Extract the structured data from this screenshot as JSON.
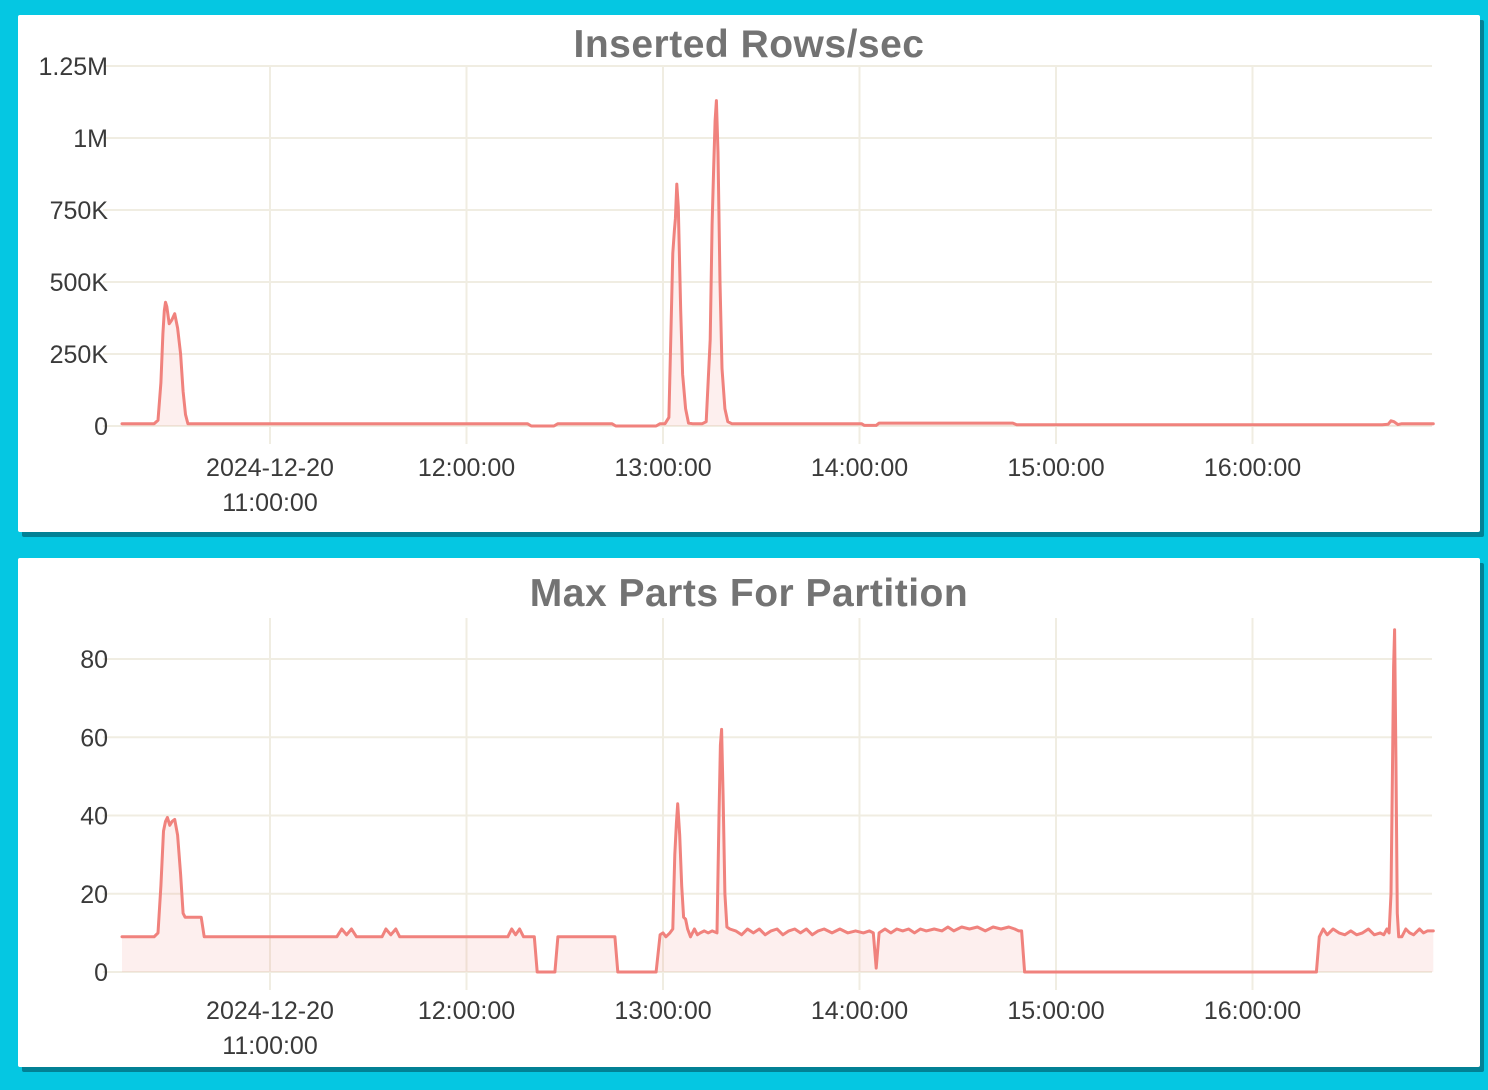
{
  "style": {
    "canvas_color": "#05C7E2",
    "panel_color": "#FFFFFF",
    "line_color": "#F0827D",
    "fill_color": "rgba(242,130,126,0.13)",
    "grid_color": "#F0EDE2",
    "title_color": "#737373",
    "tick_color": "#3A3A3A"
  },
  "chart_data": [
    {
      "type": "area",
      "title": "Inserted Rows/sec",
      "xlabel": "",
      "ylabel": "",
      "legend": "none",
      "grid": true,
      "x_range_hours": [
        10.247,
        16.92
      ],
      "y_range": [
        0,
        1250000
      ],
      "x_ticks": [
        {
          "t": 11,
          "lines": [
            "2024-12-20",
            "11:00:00"
          ]
        },
        {
          "t": 12,
          "lines": [
            "12:00:00"
          ]
        },
        {
          "t": 13,
          "lines": [
            "13:00:00"
          ]
        },
        {
          "t": 14,
          "lines": [
            "14:00:00"
          ]
        },
        {
          "t": 15,
          "lines": [
            "15:00:00"
          ]
        },
        {
          "t": 16,
          "lines": [
            "16:00:00"
          ]
        }
      ],
      "y_ticks": [
        {
          "v": 0,
          "label": "0"
        },
        {
          "v": 250000,
          "label": "250K"
        },
        {
          "v": 500000,
          "label": "500K"
        },
        {
          "v": 750000,
          "label": "750K"
        },
        {
          "v": 1000000,
          "label": "1M"
        },
        {
          "v": 1250000,
          "label": "1.25M"
        }
      ],
      "points": [
        [
          10.247,
          8000
        ],
        [
          10.41,
          8000
        ],
        [
          10.43,
          20000
        ],
        [
          10.445,
          150000
        ],
        [
          10.455,
          320000
        ],
        [
          10.462,
          400000
        ],
        [
          10.468,
          430000
        ],
        [
          10.475,
          415000
        ],
        [
          10.487,
          355000
        ],
        [
          10.5,
          368000
        ],
        [
          10.515,
          390000
        ],
        [
          10.53,
          340000
        ],
        [
          10.545,
          250000
        ],
        [
          10.558,
          120000
        ],
        [
          10.57,
          40000
        ],
        [
          10.582,
          8000
        ],
        [
          12.31,
          8000
        ],
        [
          12.33,
          0
        ],
        [
          12.445,
          0
        ],
        [
          12.465,
          8000
        ],
        [
          12.74,
          8000
        ],
        [
          12.76,
          0
        ],
        [
          12.965,
          0
        ],
        [
          12.985,
          8000
        ],
        [
          13.01,
          8000
        ],
        [
          13.03,
          30000
        ],
        [
          13.05,
          600000
        ],
        [
          13.058,
          680000
        ],
        [
          13.063,
          720000
        ],
        [
          13.07,
          840000
        ],
        [
          13.078,
          760000
        ],
        [
          13.09,
          400000
        ],
        [
          13.1,
          180000
        ],
        [
          13.115,
          60000
        ],
        [
          13.13,
          10000
        ],
        [
          13.15,
          8000
        ],
        [
          13.2,
          8000
        ],
        [
          13.22,
          15000
        ],
        [
          13.24,
          300000
        ],
        [
          13.25,
          700000
        ],
        [
          13.258,
          900000
        ],
        [
          13.265,
          1060000
        ],
        [
          13.272,
          1130000
        ],
        [
          13.28,
          950000
        ],
        [
          13.29,
          500000
        ],
        [
          13.3,
          200000
        ],
        [
          13.315,
          60000
        ],
        [
          13.33,
          15000
        ],
        [
          13.35,
          8000
        ],
        [
          14.01,
          8000
        ],
        [
          14.025,
          2000
        ],
        [
          14.085,
          2000
        ],
        [
          14.1,
          10000
        ],
        [
          14.78,
          10000
        ],
        [
          14.8,
          4000
        ],
        [
          16.66,
          4000
        ],
        [
          16.69,
          6000
        ],
        [
          16.705,
          18000
        ],
        [
          16.72,
          15000
        ],
        [
          16.74,
          5000
        ],
        [
          16.76,
          8000
        ],
        [
          16.92,
          8000
        ]
      ]
    },
    {
      "type": "area",
      "title": "Max Parts For Partition",
      "xlabel": "",
      "ylabel": "",
      "legend": "none",
      "grid": true,
      "x_range_hours": [
        10.247,
        16.92
      ],
      "y_range": [
        0,
        80
      ],
      "x_ticks": [
        {
          "t": 11,
          "lines": [
            "2024-12-20",
            "11:00:00"
          ]
        },
        {
          "t": 12,
          "lines": [
            "12:00:00"
          ]
        },
        {
          "t": 13,
          "lines": [
            "13:00:00"
          ]
        },
        {
          "t": 14,
          "lines": [
            "14:00:00"
          ]
        },
        {
          "t": 15,
          "lines": [
            "15:00:00"
          ]
        },
        {
          "t": 16,
          "lines": [
            "16:00:00"
          ]
        }
      ],
      "y_ticks": [
        {
          "v": 0,
          "label": "0"
        },
        {
          "v": 20,
          "label": "20"
        },
        {
          "v": 40,
          "label": "40"
        },
        {
          "v": 60,
          "label": "60"
        },
        {
          "v": 80,
          "label": "80"
        }
      ],
      "points": [
        [
          10.247,
          9
        ],
        [
          10.41,
          9
        ],
        [
          10.43,
          10
        ],
        [
          10.445,
          22
        ],
        [
          10.458,
          36
        ],
        [
          10.468,
          38.5
        ],
        [
          10.478,
          39.5
        ],
        [
          10.49,
          37.5
        ],
        [
          10.502,
          38.5
        ],
        [
          10.515,
          39
        ],
        [
          10.53,
          35
        ],
        [
          10.545,
          25
        ],
        [
          10.558,
          15
        ],
        [
          10.568,
          14
        ],
        [
          10.65,
          14
        ],
        [
          10.665,
          9
        ],
        [
          11.34,
          9
        ],
        [
          11.365,
          11
        ],
        [
          11.39,
          9.5
        ],
        [
          11.415,
          11
        ],
        [
          11.44,
          9
        ],
        [
          11.57,
          9
        ],
        [
          11.59,
          11
        ],
        [
          11.615,
          9.5
        ],
        [
          11.64,
          11
        ],
        [
          11.66,
          9
        ],
        [
          12.21,
          9
        ],
        [
          12.23,
          11
        ],
        [
          12.25,
          9.5
        ],
        [
          12.27,
          11
        ],
        [
          12.29,
          9
        ],
        [
          12.345,
          9
        ],
        [
          12.36,
          0
        ],
        [
          12.45,
          0
        ],
        [
          12.465,
          9
        ],
        [
          12.755,
          9
        ],
        [
          12.77,
          0
        ],
        [
          12.965,
          0
        ],
        [
          12.985,
          9.5
        ],
        [
          13.0,
          10
        ],
        [
          13.015,
          9
        ],
        [
          13.035,
          10
        ],
        [
          13.05,
          11
        ],
        [
          13.06,
          30
        ],
        [
          13.068,
          38
        ],
        [
          13.075,
          43
        ],
        [
          13.085,
          35
        ],
        [
          13.095,
          22
        ],
        [
          13.105,
          14
        ],
        [
          13.115,
          13.5
        ],
        [
          13.125,
          11
        ],
        [
          13.14,
          9
        ],
        [
          13.16,
          11
        ],
        [
          13.175,
          9.5
        ],
        [
          13.19,
          10
        ],
        [
          13.21,
          10.5
        ],
        [
          13.23,
          10
        ],
        [
          13.25,
          10.5
        ],
        [
          13.275,
          10
        ],
        [
          13.285,
          40
        ],
        [
          13.292,
          58
        ],
        [
          13.298,
          62
        ],
        [
          13.306,
          45
        ],
        [
          13.315,
          20
        ],
        [
          13.325,
          11.5
        ],
        [
          13.34,
          11
        ],
        [
          13.37,
          10.5
        ],
        [
          13.4,
          9.5
        ],
        [
          13.43,
          11
        ],
        [
          13.46,
          10
        ],
        [
          13.49,
          11
        ],
        [
          13.52,
          9.5
        ],
        [
          13.55,
          10.5
        ],
        [
          13.58,
          11
        ],
        [
          13.61,
          9.5
        ],
        [
          13.64,
          10.5
        ],
        [
          13.67,
          11
        ],
        [
          13.7,
          10
        ],
        [
          13.73,
          11
        ],
        [
          13.76,
          9.5
        ],
        [
          13.79,
          10.5
        ],
        [
          13.82,
          11
        ],
        [
          13.86,
          10
        ],
        [
          13.9,
          11
        ],
        [
          13.94,
          10
        ],
        [
          13.98,
          10.5
        ],
        [
          14.02,
          10
        ],
        [
          14.05,
          10.5
        ],
        [
          14.07,
          10
        ],
        [
          14.085,
          1
        ],
        [
          14.1,
          10
        ],
        [
          14.13,
          11
        ],
        [
          14.16,
          10
        ],
        [
          14.19,
          11
        ],
        [
          14.22,
          10.5
        ],
        [
          14.25,
          11
        ],
        [
          14.28,
          10
        ],
        [
          14.31,
          11
        ],
        [
          14.34,
          10.5
        ],
        [
          14.38,
          11
        ],
        [
          14.42,
          10.5
        ],
        [
          14.45,
          11.5
        ],
        [
          14.48,
          10.5
        ],
        [
          14.52,
          11.5
        ],
        [
          14.56,
          11
        ],
        [
          14.6,
          11.5
        ],
        [
          14.64,
          10.5
        ],
        [
          14.68,
          11.5
        ],
        [
          14.72,
          11
        ],
        [
          14.76,
          11.5
        ],
        [
          14.79,
          11
        ],
        [
          14.81,
          10.5
        ],
        [
          14.825,
          10.5
        ],
        [
          14.84,
          0
        ],
        [
          16.325,
          0
        ],
        [
          16.34,
          9
        ],
        [
          16.36,
          11
        ],
        [
          16.38,
          9.5
        ],
        [
          16.41,
          11
        ],
        [
          16.44,
          10
        ],
        [
          16.47,
          9.5
        ],
        [
          16.5,
          10.5
        ],
        [
          16.53,
          9.5
        ],
        [
          16.56,
          10
        ],
        [
          16.59,
          11
        ],
        [
          16.62,
          9.5
        ],
        [
          16.65,
          10
        ],
        [
          16.668,
          9.5
        ],
        [
          16.684,
          11
        ],
        [
          16.695,
          10
        ],
        [
          16.705,
          20
        ],
        [
          16.712,
          50
        ],
        [
          16.718,
          78
        ],
        [
          16.723,
          87.5
        ],
        [
          16.73,
          55
        ],
        [
          16.737,
          15
        ],
        [
          16.744,
          9
        ],
        [
          16.76,
          9
        ],
        [
          16.78,
          11
        ],
        [
          16.8,
          10
        ],
        [
          16.82,
          9.5
        ],
        [
          16.85,
          11
        ],
        [
          16.87,
          10
        ],
        [
          16.89,
          10.5
        ],
        [
          16.92,
          10.5
        ]
      ]
    }
  ]
}
